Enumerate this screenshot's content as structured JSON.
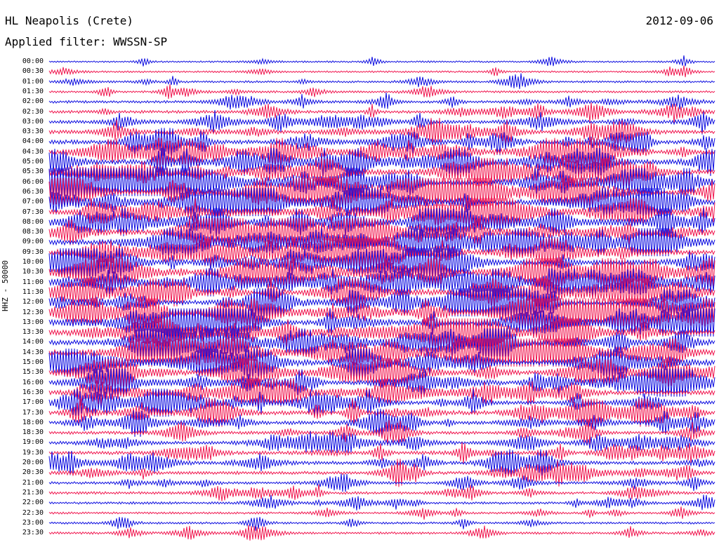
{
  "header": {
    "station": "HL Neapolis (Crete)",
    "date": "2012-09-06",
    "filter": "Applied filter: WWSSN-SP"
  },
  "channel_label": "HHZ - 50000",
  "trace_colors": [
    "#1010e0",
    "#f01850"
  ],
  "rows": [
    {
      "time": "00:00",
      "activity": 0.08
    },
    {
      "time": "00:30",
      "activity": 0.1
    },
    {
      "time": "01:00",
      "activity": 0.16
    },
    {
      "time": "01:30",
      "activity": 0.2
    },
    {
      "time": "02:00",
      "activity": 0.3
    },
    {
      "time": "02:30",
      "activity": 0.38
    },
    {
      "time": "03:00",
      "activity": 0.46
    },
    {
      "time": "03:30",
      "activity": 0.55
    },
    {
      "time": "04:00",
      "activity": 0.68
    },
    {
      "time": "04:30",
      "activity": 0.8
    },
    {
      "time": "05:00",
      "activity": 0.88
    },
    {
      "time": "05:30",
      "activity": 0.95
    },
    {
      "time": "06:00",
      "activity": 1.0
    },
    {
      "time": "06:30",
      "activity": 1.0
    },
    {
      "time": "07:00",
      "activity": 1.0
    },
    {
      "time": "07:30",
      "activity": 0.95
    },
    {
      "time": "08:00",
      "activity": 0.92
    },
    {
      "time": "08:30",
      "activity": 0.92
    },
    {
      "time": "09:00",
      "activity": 0.95
    },
    {
      "time": "09:30",
      "activity": 0.9
    },
    {
      "time": "10:00",
      "activity": 0.95
    },
    {
      "time": "10:30",
      "activity": 1.0
    },
    {
      "time": "11:00",
      "activity": 0.95
    },
    {
      "time": "11:30",
      "activity": 0.9
    },
    {
      "time": "12:00",
      "activity": 0.92
    },
    {
      "time": "12:30",
      "activity": 0.9
    },
    {
      "time": "13:00",
      "activity": 0.9
    },
    {
      "time": "13:30",
      "activity": 0.85
    },
    {
      "time": "14:00",
      "activity": 0.95
    },
    {
      "time": "14:30",
      "activity": 1.0
    },
    {
      "time": "15:00",
      "activity": 0.9
    },
    {
      "time": "15:30",
      "activity": 0.85
    },
    {
      "time": "16:00",
      "activity": 0.8
    },
    {
      "time": "16:30",
      "activity": 0.7
    },
    {
      "time": "17:00",
      "activity": 0.62
    },
    {
      "time": "17:30",
      "activity": 0.68
    },
    {
      "time": "18:00",
      "activity": 0.55
    },
    {
      "time": "18:30",
      "activity": 0.42
    },
    {
      "time": "19:00",
      "activity": 0.48
    },
    {
      "time": "19:30",
      "activity": 0.52
    },
    {
      "time": "20:00",
      "activity": 0.5
    },
    {
      "time": "20:30",
      "activity": 0.45
    },
    {
      "time": "21:00",
      "activity": 0.3
    },
    {
      "time": "21:30",
      "activity": 0.3
    },
    {
      "time": "22:00",
      "activity": 0.25
    },
    {
      "time": "22:30",
      "activity": 0.18
    },
    {
      "time": "23:00",
      "activity": 0.18
    },
    {
      "time": "23:30",
      "activity": 0.22
    }
  ]
}
